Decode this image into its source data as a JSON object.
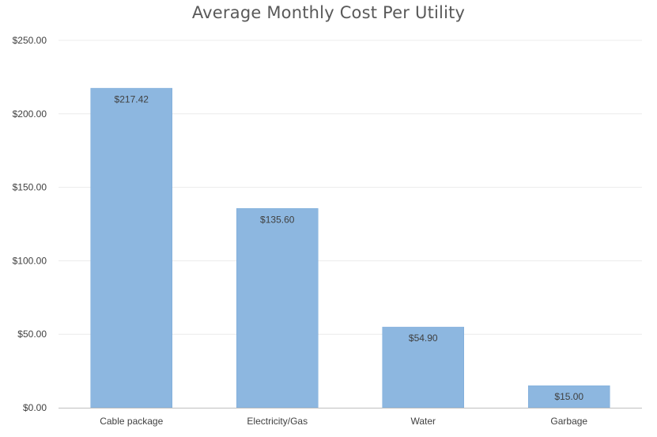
{
  "chart_data": {
    "type": "bar",
    "title": "Average Monthly Cost Per Utility",
    "xlabel": "",
    "ylabel": "",
    "categories": [
      "Cable package",
      "Electricity/Gas",
      "Water",
      "Garbage"
    ],
    "values": [
      217.42,
      135.6,
      54.9,
      15.0
    ],
    "data_labels": [
      "$217.42",
      "$135.60",
      "$54.90",
      "$15.00"
    ],
    "y_ticks": [
      0,
      50,
      100,
      150,
      200,
      250
    ],
    "y_tick_labels": [
      "$0.00",
      "$50.00",
      "$100.00",
      "$150.00",
      "$200.00",
      "$250.00"
    ],
    "ylim": [
      0,
      250
    ],
    "grid": true,
    "legend": "none",
    "colors": {
      "bar": "#8db7e0",
      "bar_edge": "#7aa9d8",
      "grid": "#ececec",
      "axis": "#bfbfbf",
      "text": "#404040",
      "title": "#595959"
    }
  }
}
